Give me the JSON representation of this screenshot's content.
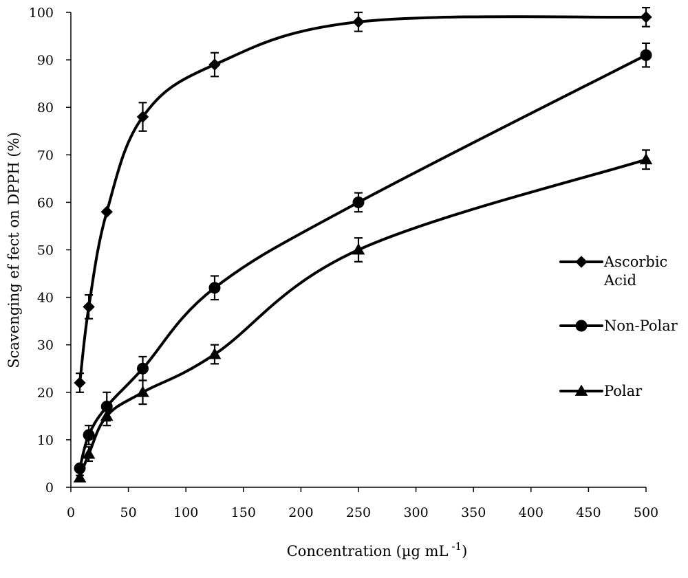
{
  "chart_data": {
    "type": "line",
    "title": "",
    "xlabel": "Concentration (µg mL",
    "xlabel_superscript": "-1",
    "xlabel_close": ")",
    "ylabel": "Scavenging ef fect on DPPH (%)",
    "xlim": [
      0,
      500
    ],
    "ylim": [
      0,
      100
    ],
    "xticks": [
      0,
      50,
      100,
      150,
      200,
      250,
      300,
      350,
      400,
      450,
      500
    ],
    "yticks": [
      0,
      10,
      20,
      30,
      40,
      50,
      60,
      70,
      80,
      90,
      100
    ],
    "grid": false,
    "legend_position": "right",
    "series": [
      {
        "name": "Ascorbic Acid",
        "legend_lines": [
          "Ascorbic",
          "Acid"
        ],
        "marker": "diamond",
        "x": [
          7.8,
          15.6,
          31.25,
          62.5,
          125,
          250,
          500
        ],
        "y": [
          22,
          38,
          58,
          78,
          89,
          98,
          99
        ],
        "err": [
          2,
          2.5,
          0,
          3,
          2.5,
          2,
          2
        ]
      },
      {
        "name": "Non-Polar",
        "legend_lines": [
          "Non-Polar"
        ],
        "marker": "circle",
        "x": [
          7.8,
          15.6,
          31.25,
          62.5,
          125,
          250,
          500
        ],
        "y": [
          4,
          11,
          17,
          25,
          42,
          60,
          91
        ],
        "err": [
          0.5,
          2,
          3,
          2.5,
          2.5,
          2,
          2.5
        ]
      },
      {
        "name": "Polar",
        "legend_lines": [
          "Polar"
        ],
        "marker": "triangle",
        "x": [
          7.8,
          15.6,
          31.25,
          62.5,
          125,
          250,
          500
        ],
        "y": [
          2,
          7,
          15,
          20,
          28,
          50,
          69
        ],
        "err": [
          0.5,
          1.5,
          2,
          2.5,
          2,
          2.5,
          2
        ]
      }
    ]
  }
}
